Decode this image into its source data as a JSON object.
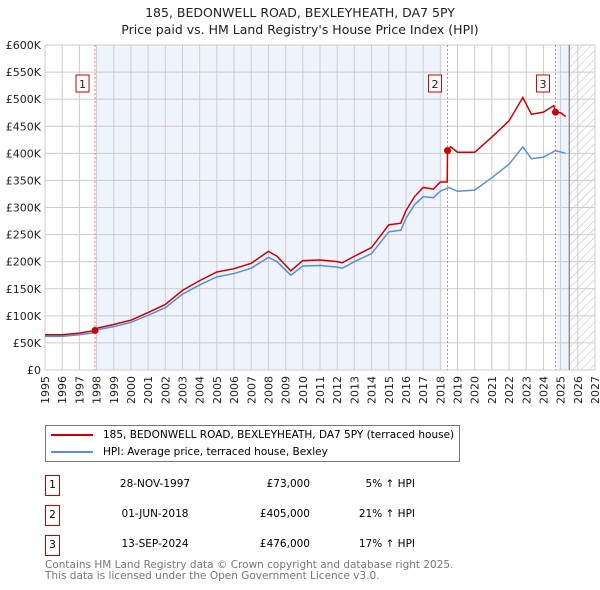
{
  "chart_data": {
    "type": "line",
    "title": "185, BEDONWELL ROAD, BEXLEYHEATH, DA7 5PY",
    "subtitle": "Price paid vs. HM Land Registry's House Price Index (HPI)",
    "xlim": [
      1995,
      2027
    ],
    "ylim": [
      0,
      600000
    ],
    "x_ticks": [
      "1995",
      "1996",
      "1997",
      "1998",
      "1999",
      "2000",
      "2001",
      "2002",
      "2003",
      "2004",
      "2005",
      "2006",
      "2007",
      "2008",
      "2009",
      "2010",
      "2011",
      "2012",
      "2013",
      "2014",
      "2015",
      "2016",
      "2017",
      "2018",
      "2019",
      "2020",
      "2021",
      "2022",
      "2023",
      "2024",
      "2025",
      "2026",
      "2027"
    ],
    "y_ticks": [
      {
        "v": 0,
        "label": "£0"
      },
      {
        "v": 50000,
        "label": "£50K"
      },
      {
        "v": 100000,
        "label": "£100K"
      },
      {
        "v": 150000,
        "label": "£150K"
      },
      {
        "v": 200000,
        "label": "£200K"
      },
      {
        "v": 250000,
        "label": "£250K"
      },
      {
        "v": 300000,
        "label": "£300K"
      },
      {
        "v": 350000,
        "label": "£350K"
      },
      {
        "v": 400000,
        "label": "£400K"
      },
      {
        "v": 450000,
        "label": "£450K"
      },
      {
        "v": 500000,
        "label": "£500K"
      },
      {
        "v": 550000,
        "label": "£550K"
      },
      {
        "v": 600000,
        "label": "£600K"
      }
    ],
    "grid": true,
    "series": [
      {
        "name": "185, BEDONWELL ROAD, BEXLEYHEATH, DA7 5PY (terraced house)",
        "color": "#cc0000",
        "points": [
          [
            1995,
            65000
          ],
          [
            1996,
            65000
          ],
          [
            1997,
            68000
          ],
          [
            1997.91,
            73000
          ],
          [
            1998,
            77000
          ],
          [
            1999,
            84000
          ],
          [
            2000,
            92000
          ],
          [
            2001,
            106000
          ],
          [
            2002,
            121000
          ],
          [
            2003,
            147000
          ],
          [
            2004,
            165000
          ],
          [
            2005,
            181000
          ],
          [
            2006,
            187000
          ],
          [
            2007,
            197000
          ],
          [
            2008,
            219000
          ],
          [
            2008.5,
            210000
          ],
          [
            2009.3,
            183000
          ],
          [
            2010,
            202000
          ],
          [
            2011,
            203000
          ],
          [
            2012,
            200000
          ],
          [
            2012.3,
            198000
          ],
          [
            2013,
            210000
          ],
          [
            2014,
            226000
          ],
          [
            2014.5,
            247000
          ],
          [
            2015,
            268000
          ],
          [
            2015.7,
            271000
          ],
          [
            2016,
            294000
          ],
          [
            2016.5,
            320000
          ],
          [
            2017,
            337000
          ],
          [
            2017.6,
            334000
          ],
          [
            2018,
            347000
          ],
          [
            2018.4,
            347000
          ],
          [
            2018.42,
            405000
          ],
          [
            2018.6,
            412000
          ],
          [
            2019,
            402000
          ],
          [
            2020,
            402000
          ],
          [
            2021,
            430000
          ],
          [
            2022,
            460000
          ],
          [
            2022.8,
            503000
          ],
          [
            2023.3,
            472000
          ],
          [
            2024,
            476000
          ],
          [
            2024.6,
            488000
          ],
          [
            2024.7,
            476000
          ],
          [
            2025,
            475000
          ],
          [
            2025.3,
            468000
          ]
        ]
      },
      {
        "name": "HPI: Average price, terraced house, Bexley",
        "color": "#5b8fd6",
        "points": [
          [
            1995,
            62000
          ],
          [
            1996,
            62000
          ],
          [
            1997,
            65000
          ],
          [
            1997.9,
            69000
          ],
          [
            1998,
            74000
          ],
          [
            1999,
            80000
          ],
          [
            2000,
            88000
          ],
          [
            2001,
            101000
          ],
          [
            2002,
            115000
          ],
          [
            2003,
            140000
          ],
          [
            2004,
            157000
          ],
          [
            2005,
            172000
          ],
          [
            2006,
            178000
          ],
          [
            2007,
            188000
          ],
          [
            2008,
            208000
          ],
          [
            2008.5,
            200000
          ],
          [
            2009.3,
            175000
          ],
          [
            2010,
            192000
          ],
          [
            2011,
            193000
          ],
          [
            2012,
            190000
          ],
          [
            2012.3,
            188000
          ],
          [
            2013,
            200000
          ],
          [
            2014,
            215000
          ],
          [
            2014.5,
            235000
          ],
          [
            2015,
            255000
          ],
          [
            2015.7,
            258000
          ],
          [
            2016,
            280000
          ],
          [
            2016.5,
            305000
          ],
          [
            2017,
            320000
          ],
          [
            2017.6,
            318000
          ],
          [
            2018,
            330000
          ],
          [
            2018.5,
            337000
          ],
          [
            2019,
            330000
          ],
          [
            2020,
            332000
          ],
          [
            2021,
            355000
          ],
          [
            2022,
            380000
          ],
          [
            2022.8,
            412000
          ],
          [
            2023.3,
            390000
          ],
          [
            2024,
            393000
          ],
          [
            2024.7,
            405000
          ],
          [
            2025.3,
            400000
          ]
        ]
      }
    ],
    "sales": [
      {
        "n": "1",
        "x": 1997.91,
        "price": 73000
      },
      {
        "n": "2",
        "x": 2018.42,
        "price": 405000
      },
      {
        "n": "3",
        "x": 2024.7,
        "price": 476000
      }
    ],
    "shaded_ranges": [
      [
        1998.0,
        2018.1
      ],
      [
        2024.8,
        2025.5
      ]
    ],
    "forecast_hatch": [
      2025.5,
      2027
    ],
    "legend": {
      "placement": "bottom",
      "entries": [
        "185, BEDONWELL ROAD, BEXLEYHEATH, DA7 5PY (terraced house)",
        "HPI: Average price, terraced house, Bexley"
      ]
    }
  },
  "table": [
    {
      "n": "1",
      "date": "28-NOV-1997",
      "price": "£73,000",
      "hpi": "5% ↑ HPI"
    },
    {
      "n": "2",
      "date": "01-JUN-2018",
      "price": "£405,000",
      "hpi": "21% ↑ HPI"
    },
    {
      "n": "3",
      "date": "13-SEP-2024",
      "price": "£476,000",
      "hpi": "17% ↑ HPI"
    }
  ],
  "footer": [
    "Contains HM Land Registry data © Crown copyright and database right 2025.",
    "This data is licensed under the Open Government Licence v3.0."
  ]
}
